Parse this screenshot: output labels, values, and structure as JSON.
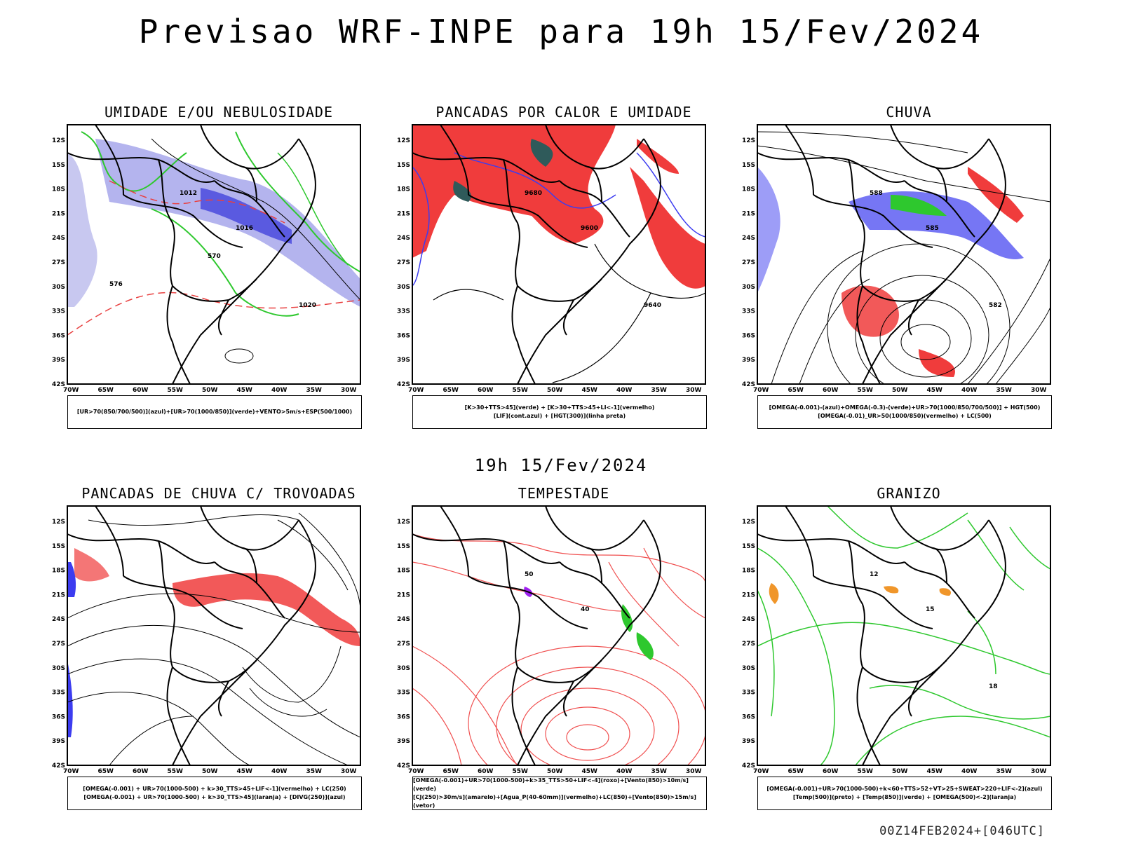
{
  "title": "Previsao WRF-INPE  para 19h 15/Fev/2024",
  "mid_date": "19h 15/Fev/2024",
  "footer": "00Z14FEB2024+[046UTC]",
  "lat_labels": [
    "12S",
    "15S",
    "18S",
    "21S",
    "24S",
    "27S",
    "30S",
    "33S",
    "36S",
    "39S",
    "42S"
  ],
  "lon_labels": [
    "70W",
    "65W",
    "60W",
    "55W",
    "50W",
    "45W",
    "40W",
    "35W",
    "30W"
  ],
  "colors": {
    "red": "#f03c3c",
    "green": "#2ec82e",
    "blue": "#3c3cf0",
    "lavender": "#a8a8ec",
    "orange": "#f0962a",
    "purple": "#a020f0",
    "dark": "#2f5a5a"
  },
  "panels": [
    {
      "title": "UMIDADE E/OU NEBULOSIDADE",
      "legend": [
        "[UR>70(850/700/500)](azul)+[UR>70(1000/850)](verde)+VENTO>5m/s+ESP(500/1000)"
      ],
      "labels": [
        "1012",
        "1016",
        "1020",
        "576",
        "570"
      ]
    },
    {
      "title": "PANCADAS POR CALOR E UMIDADE",
      "legend": [
        "[K>30+TTS>45](verde) + [K>30+TTS>45+LI<-1](vermelho)",
        "[LIF](cont.azul) + [HGT(300)](linha preta)"
      ],
      "labels": [
        "9680",
        "9600",
        "9640"
      ]
    },
    {
      "title": "CHUVA",
      "legend": [
        "[OMEGA(-0.001)-(azul)+OMEGA(-0.3)-(verde)+UR>70(1000/850/700/500)] + HGT(500)",
        "[OMEGA(-0.01)_UR>50(1000/850)(vermelho) + LC(500)"
      ],
      "labels": [
        "588",
        "585",
        "582"
      ]
    },
    {
      "title": "PANCADAS DE CHUVA C/ TROVOADAS",
      "legend": [
        "[OMEGA(-0.001) + UR>70(1000-500) + k>30_TTS>45+LIF<-1](vermelho) + LC(250)",
        "[OMEGA(-0.001) + UR>70(1000-500) + k>30_TTS>45](laranja) + [DIVG(250)](azul)"
      ],
      "labels": []
    },
    {
      "title": "TEMPESTADE",
      "legend": [
        "[OMEGA(-0.001)+UR>70(1000-500)+k>35_TTS>50+LIF<-4](roxo)+[Vento(850)>10m/s](verde)",
        "[CJ(250)>30m/s](amarelo)+[Agua_P(40-60mm)](vermelho)+LC(850)+[Vento(850)>15m/s](vetor)"
      ],
      "labels": [
        "50",
        "40"
      ]
    },
    {
      "title": "GRANIZO",
      "legend": [
        "[OMEGA(-0.001)+UR>70(1000-500)+k<60+TTS>52+VT>25+SWEAT>220+LIF<-2](azul)",
        "[Temp(500)](preto) + [Temp(850)](verde) + [OMEGA(500)<-2](laranja)"
      ],
      "labels": [
        "12",
        "15",
        "18"
      ]
    }
  ]
}
